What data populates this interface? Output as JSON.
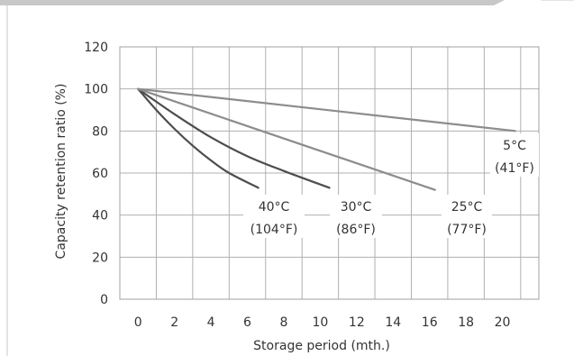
{
  "chart_data": {
    "type": "line",
    "xlabel": "Storage period (mth.)",
    "ylabel": "Capacity retention ratio (%)",
    "xlim": [
      -1,
      22
    ],
    "ylim": [
      0,
      120
    ],
    "x_ticks": [
      0,
      2,
      4,
      6,
      8,
      10,
      12,
      14,
      16,
      18,
      20
    ],
    "y_ticks": [
      0,
      20,
      40,
      60,
      80,
      100,
      120
    ],
    "grid": true,
    "series": [
      {
        "name": "40°C (104°F)",
        "label_lines": [
          "40°C",
          "(104°F)"
        ],
        "color": "#4d4d4d",
        "x": [
          0,
          1,
          2,
          3,
          4,
          5,
          6.6
        ],
        "y": [
          100,
          90,
          81,
          73,
          66,
          60,
          53
        ]
      },
      {
        "name": "30°C (86°F)",
        "label_lines": [
          "30°C",
          "(86°F)"
        ],
        "color": "#4d4d4d",
        "x": [
          0,
          2,
          4,
          6,
          8,
          10.5
        ],
        "y": [
          100,
          88,
          77,
          68,
          61,
          53
        ]
      },
      {
        "name": "25°C (77°F)",
        "label_lines": [
          "25°C",
          "(77°F)"
        ],
        "color": "#8c8c8c",
        "x": [
          0,
          16.3
        ],
        "y": [
          100,
          52
        ]
      },
      {
        "name": "5°C (41°F)",
        "label_lines": [
          "5°C",
          "(41°F)"
        ],
        "color": "#8c8c8c",
        "x": [
          0,
          20.7
        ],
        "y": [
          100,
          80
        ]
      }
    ],
    "colors": {
      "grid": "#b0b0b0",
      "plot_border": "#a0a0a0",
      "header_bar": "#c8c8c8",
      "frame_border": "#c8c8c8"
    }
  }
}
